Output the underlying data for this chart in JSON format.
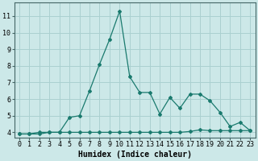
{
  "line1_x": [
    0,
    1,
    2,
    3,
    4,
    5,
    6,
    7,
    8,
    9,
    10,
    11,
    12,
    13,
    14,
    15,
    16,
    17,
    18,
    19,
    20,
    21,
    22,
    23
  ],
  "line1_y": [
    3.9,
    3.9,
    4.0,
    4.0,
    4.0,
    4.9,
    5.0,
    6.5,
    8.1,
    9.6,
    11.3,
    7.35,
    6.4,
    6.4,
    5.1,
    6.1,
    5.45,
    6.3,
    6.3,
    5.9,
    5.2,
    4.35,
    4.6,
    4.1
  ],
  "line2_x": [
    0,
    1,
    2,
    3,
    4,
    5,
    6,
    7,
    8,
    9,
    10,
    11,
    12,
    13,
    14,
    15,
    16,
    17,
    18,
    19,
    20,
    21,
    22,
    23
  ],
  "line2_y": [
    3.9,
    3.9,
    3.9,
    4.0,
    4.0,
    4.0,
    4.0,
    4.0,
    4.0,
    4.0,
    4.0,
    4.0,
    4.0,
    4.0,
    4.0,
    4.0,
    4.0,
    4.05,
    4.15,
    4.1,
    4.1,
    4.1,
    4.1,
    4.1
  ],
  "line_color": "#1a7a6e",
  "bg_color": "#cce8e8",
  "grid_color": "#aad0d0",
  "xlabel": "Humidex (Indice chaleur)",
  "xlim": [
    -0.5,
    23.5
  ],
  "ylim": [
    3.7,
    11.8
  ],
  "yticks": [
    4,
    5,
    6,
    7,
    8,
    9,
    10,
    11
  ],
  "xticks": [
    0,
    1,
    2,
    3,
    4,
    5,
    6,
    7,
    8,
    9,
    10,
    11,
    12,
    13,
    14,
    15,
    16,
    17,
    18,
    19,
    20,
    21,
    22,
    23
  ],
  "xtick_labels": [
    "0",
    "1",
    "2",
    "3",
    "4",
    "5",
    "6",
    "7",
    "8",
    "9",
    "10",
    "11",
    "12",
    "13",
    "14",
    "15",
    "16",
    "17",
    "18",
    "19",
    "20",
    "21",
    "22",
    "23"
  ],
  "marker": "D",
  "marker_size": 2.0,
  "linewidth": 0.9,
  "tick_fontsize": 6,
  "xlabel_fontsize": 7
}
